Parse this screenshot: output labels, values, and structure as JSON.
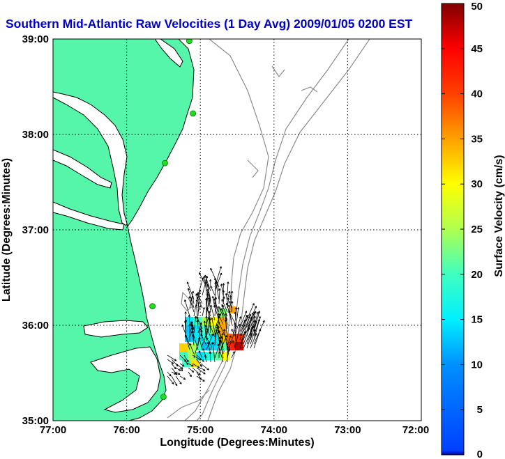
{
  "title": "Southern Mid-Atlantic Raw Velocities (1 Day Avg) 2009/01/05 0200 EST",
  "map": {
    "xlabel": "Longitude (Degrees:Minutes)",
    "ylabel": "Latitude (Degrees:Minutes)",
    "x_ticks": [
      "77:00",
      "76:00",
      "75:00",
      "74:00",
      "73:00",
      "72:00"
    ],
    "y_ticks": [
      "39:00",
      "38:00",
      "37:00",
      "36:00",
      "35:00"
    ],
    "lon_range": [
      -77,
      -72
    ],
    "lat_range": [
      35,
      39
    ],
    "grid": true,
    "colors": {
      "land": "#55f5aa",
      "water": "#ffffff",
      "coastline": "#000000",
      "bathymetry": "#8c8c8c",
      "station": "#22dd22",
      "grid": "#000000",
      "title": "#0000cc"
    },
    "stations": [
      {
        "lon": -75.15,
        "lat": 38.98
      },
      {
        "lon": -75.1,
        "lat": 38.22
      },
      {
        "lon": -75.48,
        "lat": 37.7
      },
      {
        "lon": -75.65,
        "lat": 36.2
      },
      {
        "lon": -75.5,
        "lat": 35.25
      }
    ]
  },
  "colorbar": {
    "label": "Surface Velocity (cm/s)",
    "ticks": [
      "50",
      "45",
      "40",
      "35",
      "30",
      "25",
      "20",
      "15",
      "10",
      "5",
      "0"
    ],
    "range": [
      0,
      50
    ],
    "colormap": "jet"
  }
}
